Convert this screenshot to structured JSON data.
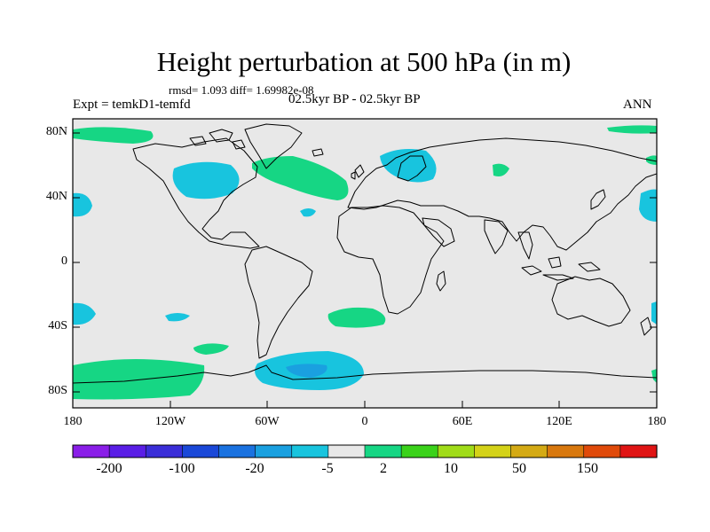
{
  "title": "Height perturbation at 500 hPa (in m)",
  "rmsd_line": "rmsd= 1.093 diff= 1.69982e-08",
  "experiment": "Expt = temkD1-temfd",
  "period": "02.5kyr BP - 02.5kyr BP",
  "season": "ANN",
  "lat_labels": [
    "80N",
    "40N",
    "0",
    "40S",
    "80S"
  ],
  "lon_labels": [
    "180",
    "120W",
    "60W",
    "0",
    "60E",
    "120E",
    "180"
  ],
  "colorbar": {
    "labels": [
      "-200",
      "-100",
      "-20",
      "-5",
      "2",
      "10",
      "50",
      "150"
    ],
    "colors": [
      "#8a1ee8",
      "#5a1ee6",
      "#3a2ed8",
      "#1a48d8",
      "#1a72e0",
      "#1aa0e0",
      "#18c4de",
      "#e8e8e8",
      "#16d684",
      "#3ad21a",
      "#a0dc18",
      "#d4d218",
      "#d4aa14",
      "#d8780e",
      "#e04a0a",
      "#e01414"
    ]
  },
  "colors": {
    "land_background": "#e8e8e8",
    "positive_anomaly": "#16d684",
    "negative_anomaly": "#18c4de",
    "negative_strong": "#1aa0e0"
  }
}
